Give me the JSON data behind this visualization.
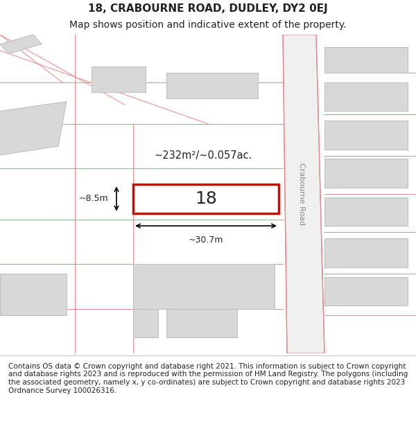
{
  "title_line1": "18, CRABOURNE ROAD, DUDLEY, DY2 0EJ",
  "title_line2": "Map shows position and indicative extent of the property.",
  "footer_text": "Contains OS data © Crown copyright and database right 2021. This information is subject to Crown copyright and database rights 2023 and is reproduced with the permission of HM Land Registry. The polygons (including the associated geometry, namely x, y co-ordinates) are subject to Crown copyright and database rights 2023 Ordnance Survey 100026316.",
  "bg_color": "#ffffff",
  "map_bg": "#f5f5f5",
  "road_color": "#f5c0c0",
  "road_line_color": "#e88888",
  "building_fill": "#d8d8d8",
  "building_edge": "#c0c0c0",
  "highlight_fill": "#ffffff",
  "highlight_edge": "#dd0000",
  "road_label": "Crabourne Road",
  "property_number": "18",
  "area_text": "~232m²/~0.057ac.",
  "width_text": "~30.7m",
  "height_text": "~8.5m",
  "title_fontsize": 11,
  "subtitle_fontsize": 10,
  "footer_fontsize": 7.5
}
